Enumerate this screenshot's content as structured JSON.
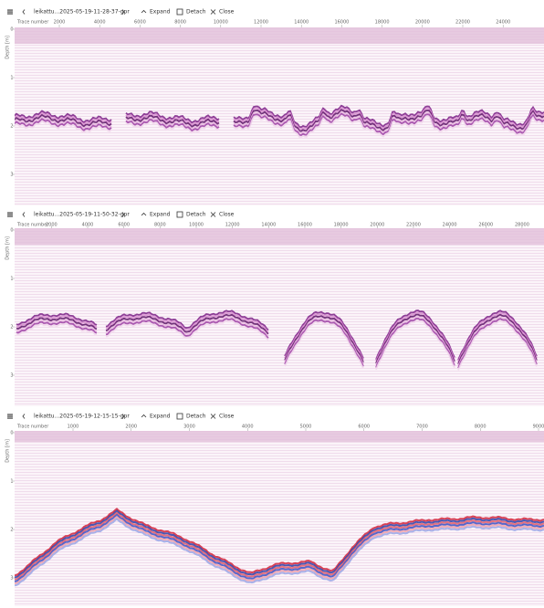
{
  "panels": [
    {
      "title": "leikattu...2025-05-19-11-28-37-gpr",
      "actions": [
        "Expand",
        "Detach",
        "Close"
      ],
      "x_axis_label": "Trace number",
      "x_ticks": [
        2000,
        4000,
        6000,
        8000,
        10000,
        12000,
        14000,
        16000,
        18000,
        20000,
        22000,
        24000
      ],
      "y_axis_label": "Depth [m]",
      "y_ticks": [
        0,
        1,
        2,
        3
      ]
    },
    {
      "title": "leikattu...2025-05-19-11-50-32-gpr",
      "actions": [
        "Expand",
        "Detach",
        "Close"
      ],
      "x_axis_label": "Trace number",
      "x_ticks": [
        2000,
        4000,
        6000,
        8000,
        10000,
        12000,
        14000,
        16000,
        18000,
        20000,
        22000,
        24000,
        26000,
        28000
      ],
      "y_axis_label": "Depth [m]",
      "y_ticks": [
        0,
        1,
        2,
        3
      ]
    },
    {
      "title": "leikattu...2025-05-19-12-15-15-gpr",
      "actions": [
        "Expand",
        "Detach",
        "Close"
      ],
      "x_axis_label": "Trace number",
      "x_ticks": [
        1000,
        2000,
        3000,
        4000,
        5000,
        6000,
        7000,
        8000,
        9000
      ],
      "y_axis_label": "Depth [m]",
      "y_ticks": [
        0,
        1,
        2,
        3
      ]
    }
  ]
}
